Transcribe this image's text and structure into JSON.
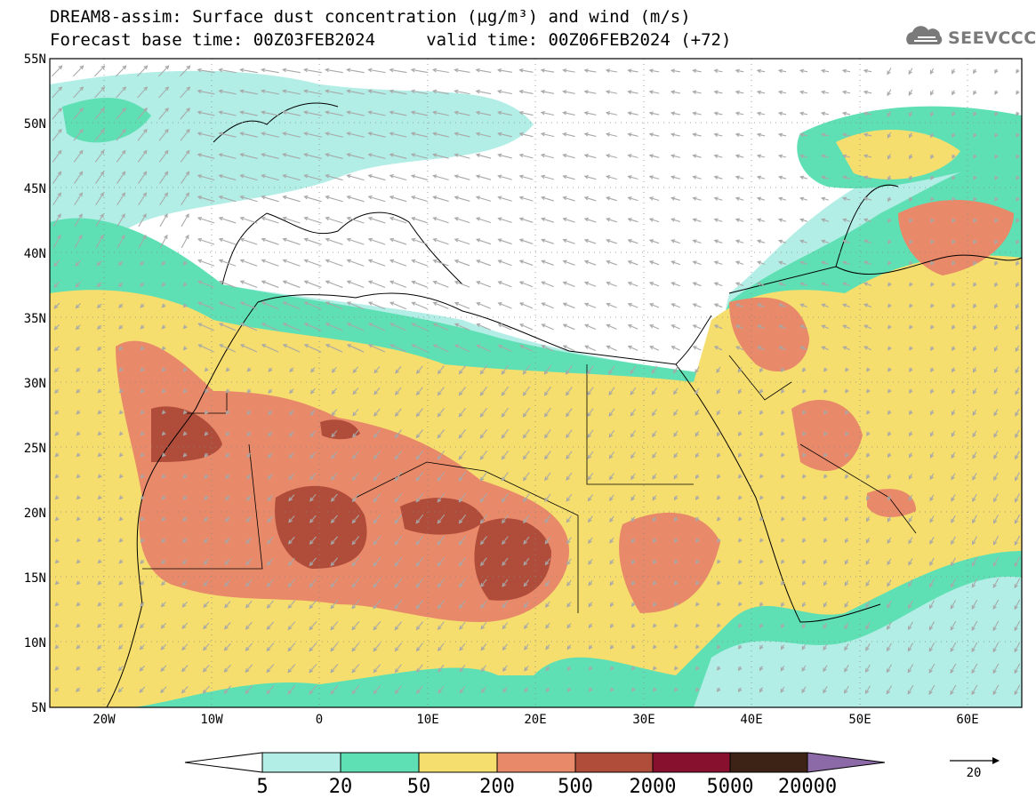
{
  "header": {
    "title_line1": "DREAM8-assim: Surface dust concentration (µg/m³) and wind (m/s)",
    "title_line2": "Forecast base time: 00Z03FEB2024     valid time: 00Z06FEB2024 (+72)",
    "logo_text": "SEEVCCC",
    "logo_icon": "cloud-logo-icon"
  },
  "map": {
    "lat_labels": [
      "55N",
      "50N",
      "45N",
      "40N",
      "35N",
      "30N",
      "25N",
      "20N",
      "15N",
      "10N",
      "5N"
    ],
    "lon_labels": [
      "20W",
      "10W",
      "0",
      "10E",
      "20E",
      "30E",
      "40E",
      "50E",
      "60E"
    ],
    "lat_values": [
      55,
      50,
      45,
      40,
      35,
      30,
      25,
      20,
      15,
      10,
      5
    ],
    "lon_values": [
      -20,
      -10,
      0,
      10,
      20,
      30,
      40,
      50,
      60
    ],
    "lon_range": [
      -25,
      65
    ],
    "lat_range": [
      5,
      55
    ],
    "grid": "dotted"
  },
  "colorbar": {
    "labels": [
      "5",
      "20",
      "50",
      "200",
      "500",
      "2000",
      "5000",
      "20000"
    ],
    "colors": [
      "#ffffff",
      "#b2eee6",
      "#5fe0b4",
      "#f5de6e",
      "#e8896a",
      "#b04c3a",
      "#86102e",
      "#3d2316",
      "#8c6aa8"
    ],
    "extend": "both"
  },
  "wind_reference": {
    "label": "20",
    "units": "m/s"
  }
}
